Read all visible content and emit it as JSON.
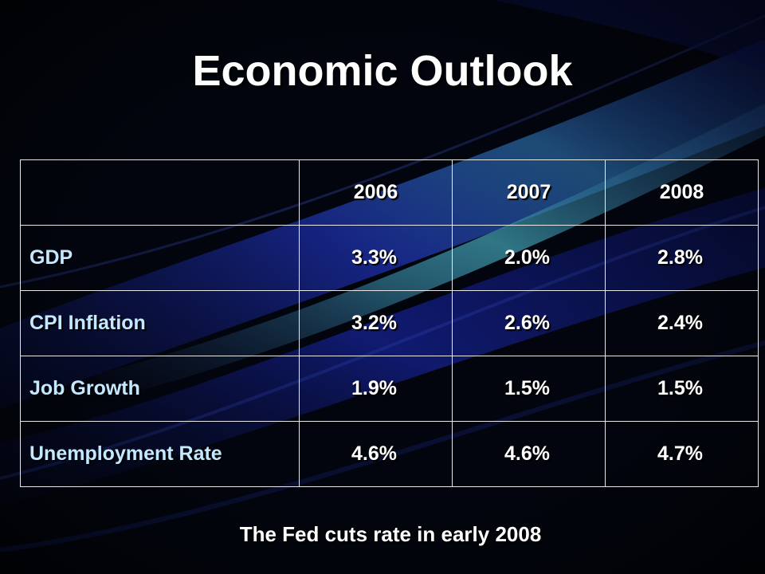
{
  "slide": {
    "title": "Economic Outlook",
    "footnote": "The Fed cuts rate in early 2008"
  },
  "table": {
    "header": [
      "",
      "2006",
      "2007",
      "2008"
    ],
    "rows": [
      {
        "label": "GDP",
        "values": [
          "3.3%",
          "2.0%",
          "2.8%"
        ]
      },
      {
        "label": "CPI Inflation",
        "values": [
          "3.2%",
          "2.6%",
          "2.4%"
        ]
      },
      {
        "label": "Job Growth",
        "values": [
          "1.9%",
          "1.5%",
          "1.5%"
        ]
      },
      {
        "label": "Unemployment Rate",
        "values": [
          "4.6%",
          "4.6%",
          "4.7%"
        ]
      }
    ]
  },
  "colors": {
    "background": "#02040a",
    "band_blue": "#1a2f9e",
    "band_teal": "#3fa6b8",
    "row_label": "#c4e8ff",
    "text": "#ffffff",
    "grid": "#e8e8e8"
  }
}
